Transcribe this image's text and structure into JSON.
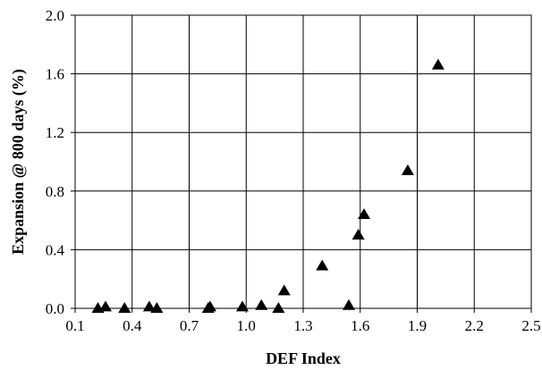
{
  "chart_data": {
    "type": "scatter",
    "title": "",
    "xlabel": "DEF Index",
    "ylabel": "Expansion @ 800 days (%)",
    "xlim": [
      0.1,
      2.5
    ],
    "ylim": [
      0.0,
      2.0
    ],
    "x_ticks": [
      "0.1",
      "0.4",
      "0.7",
      "1.0",
      "1.3",
      "1.6",
      "1.9",
      "2.2",
      "2.5"
    ],
    "y_ticks": [
      "0.0",
      "0.4",
      "0.8",
      "1.2",
      "1.6",
      "2.0"
    ],
    "grid": true,
    "marker": "triangle",
    "points": [
      {
        "x": 0.22,
        "y": 0.0
      },
      {
        "x": 0.26,
        "y": 0.01
      },
      {
        "x": 0.36,
        "y": 0.0
      },
      {
        "x": 0.49,
        "y": 0.01
      },
      {
        "x": 0.53,
        "y": 0.0
      },
      {
        "x": 0.8,
        "y": 0.0
      },
      {
        "x": 0.81,
        "y": 0.01
      },
      {
        "x": 0.98,
        "y": 0.01
      },
      {
        "x": 1.08,
        "y": 0.02
      },
      {
        "x": 1.17,
        "y": 0.0
      },
      {
        "x": 1.2,
        "y": 0.12
      },
      {
        "x": 1.4,
        "y": 0.29
      },
      {
        "x": 1.54,
        "y": 0.02
      },
      {
        "x": 1.59,
        "y": 0.5
      },
      {
        "x": 1.62,
        "y": 0.64
      },
      {
        "x": 1.85,
        "y": 0.94
      },
      {
        "x": 2.01,
        "y": 1.66
      }
    ]
  }
}
